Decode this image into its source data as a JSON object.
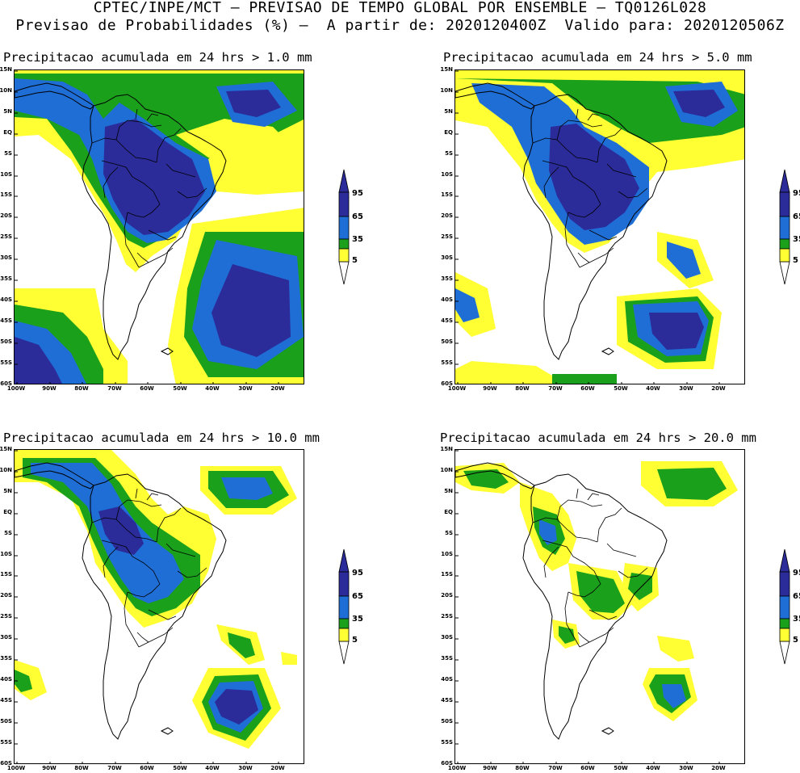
{
  "header": {
    "line1": "CPTEC/INPE/MCT – PREVISAO DE TEMPO GLOBAL POR ENSEMBLE – TQ0126L028",
    "line2": "Previsao de Probabilidades (%) –  A partir de: 2020120400Z  Valido para: 2020120506Z"
  },
  "colors": {
    "p5": "#ffff33",
    "p35": "#1aa01a",
    "p65": "#1f6ed6",
    "p95": "#2b2b99",
    "coast": "#000000"
  },
  "axis": {
    "lat_labels": [
      "15N",
      "10N",
      "5N",
      "EQ",
      "5S",
      "10S",
      "15S",
      "20S",
      "25S",
      "30S",
      "35S",
      "40S",
      "45S",
      "50S",
      "55S",
      "60S"
    ],
    "lon_labels": [
      "100W",
      "90W",
      "80W",
      "70W",
      "60W",
      "50W",
      "40W",
      "30W",
      "20W"
    ]
  },
  "legend": {
    "values": [
      "95",
      "65",
      "35",
      "5"
    ]
  },
  "panels": [
    {
      "title": "Precipitacao acumulada em 24 hrs > 1.0 mm"
    },
    {
      "title": "Precipitacao acumulada em 24 hrs > 5.0 mm"
    },
    {
      "title": "Precipitacao acumulada em 24 hrs > 10.0 mm"
    },
    {
      "title": "Precipitacao acumulada em 24 hrs > 20.0 mm"
    }
  ]
}
